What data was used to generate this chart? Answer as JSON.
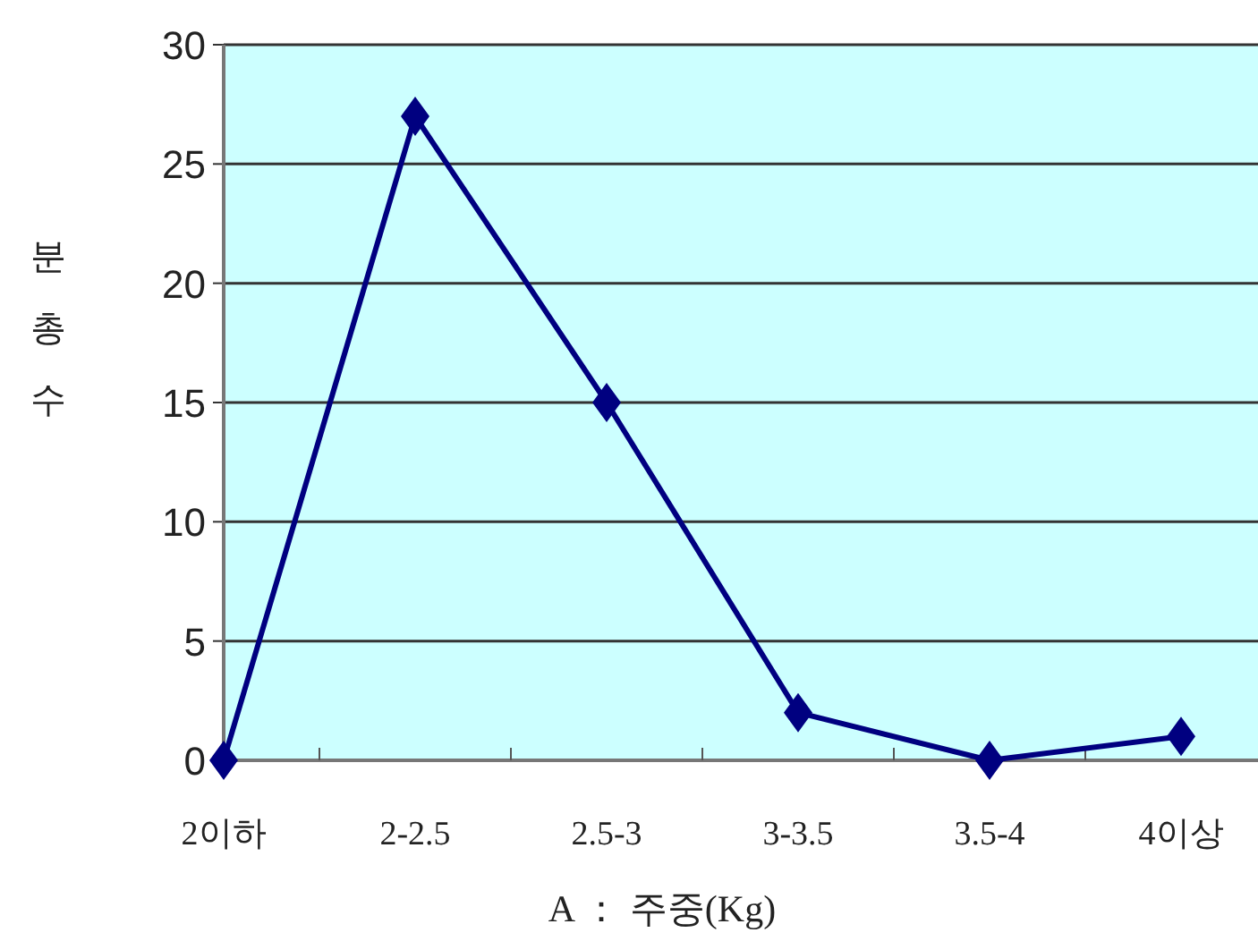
{
  "chart_data": {
    "type": "line",
    "xlabel": "A ： 주중(Kg)",
    "ylabel": "분총수",
    "categories": [
      "2이하",
      "2-2.5",
      "2.5-3",
      "3-3.5",
      "3.5-4",
      "4이상"
    ],
    "series": [
      {
        "color": "#000080",
        "values": [
          0,
          27,
          15,
          2,
          0,
          1
        ]
      }
    ],
    "ylim": [
      0,
      30
    ],
    "yticks": [
      0,
      5,
      10,
      15,
      20,
      25,
      30
    ],
    "grid": "y",
    "marker": "diamond",
    "line_style": "solid"
  }
}
